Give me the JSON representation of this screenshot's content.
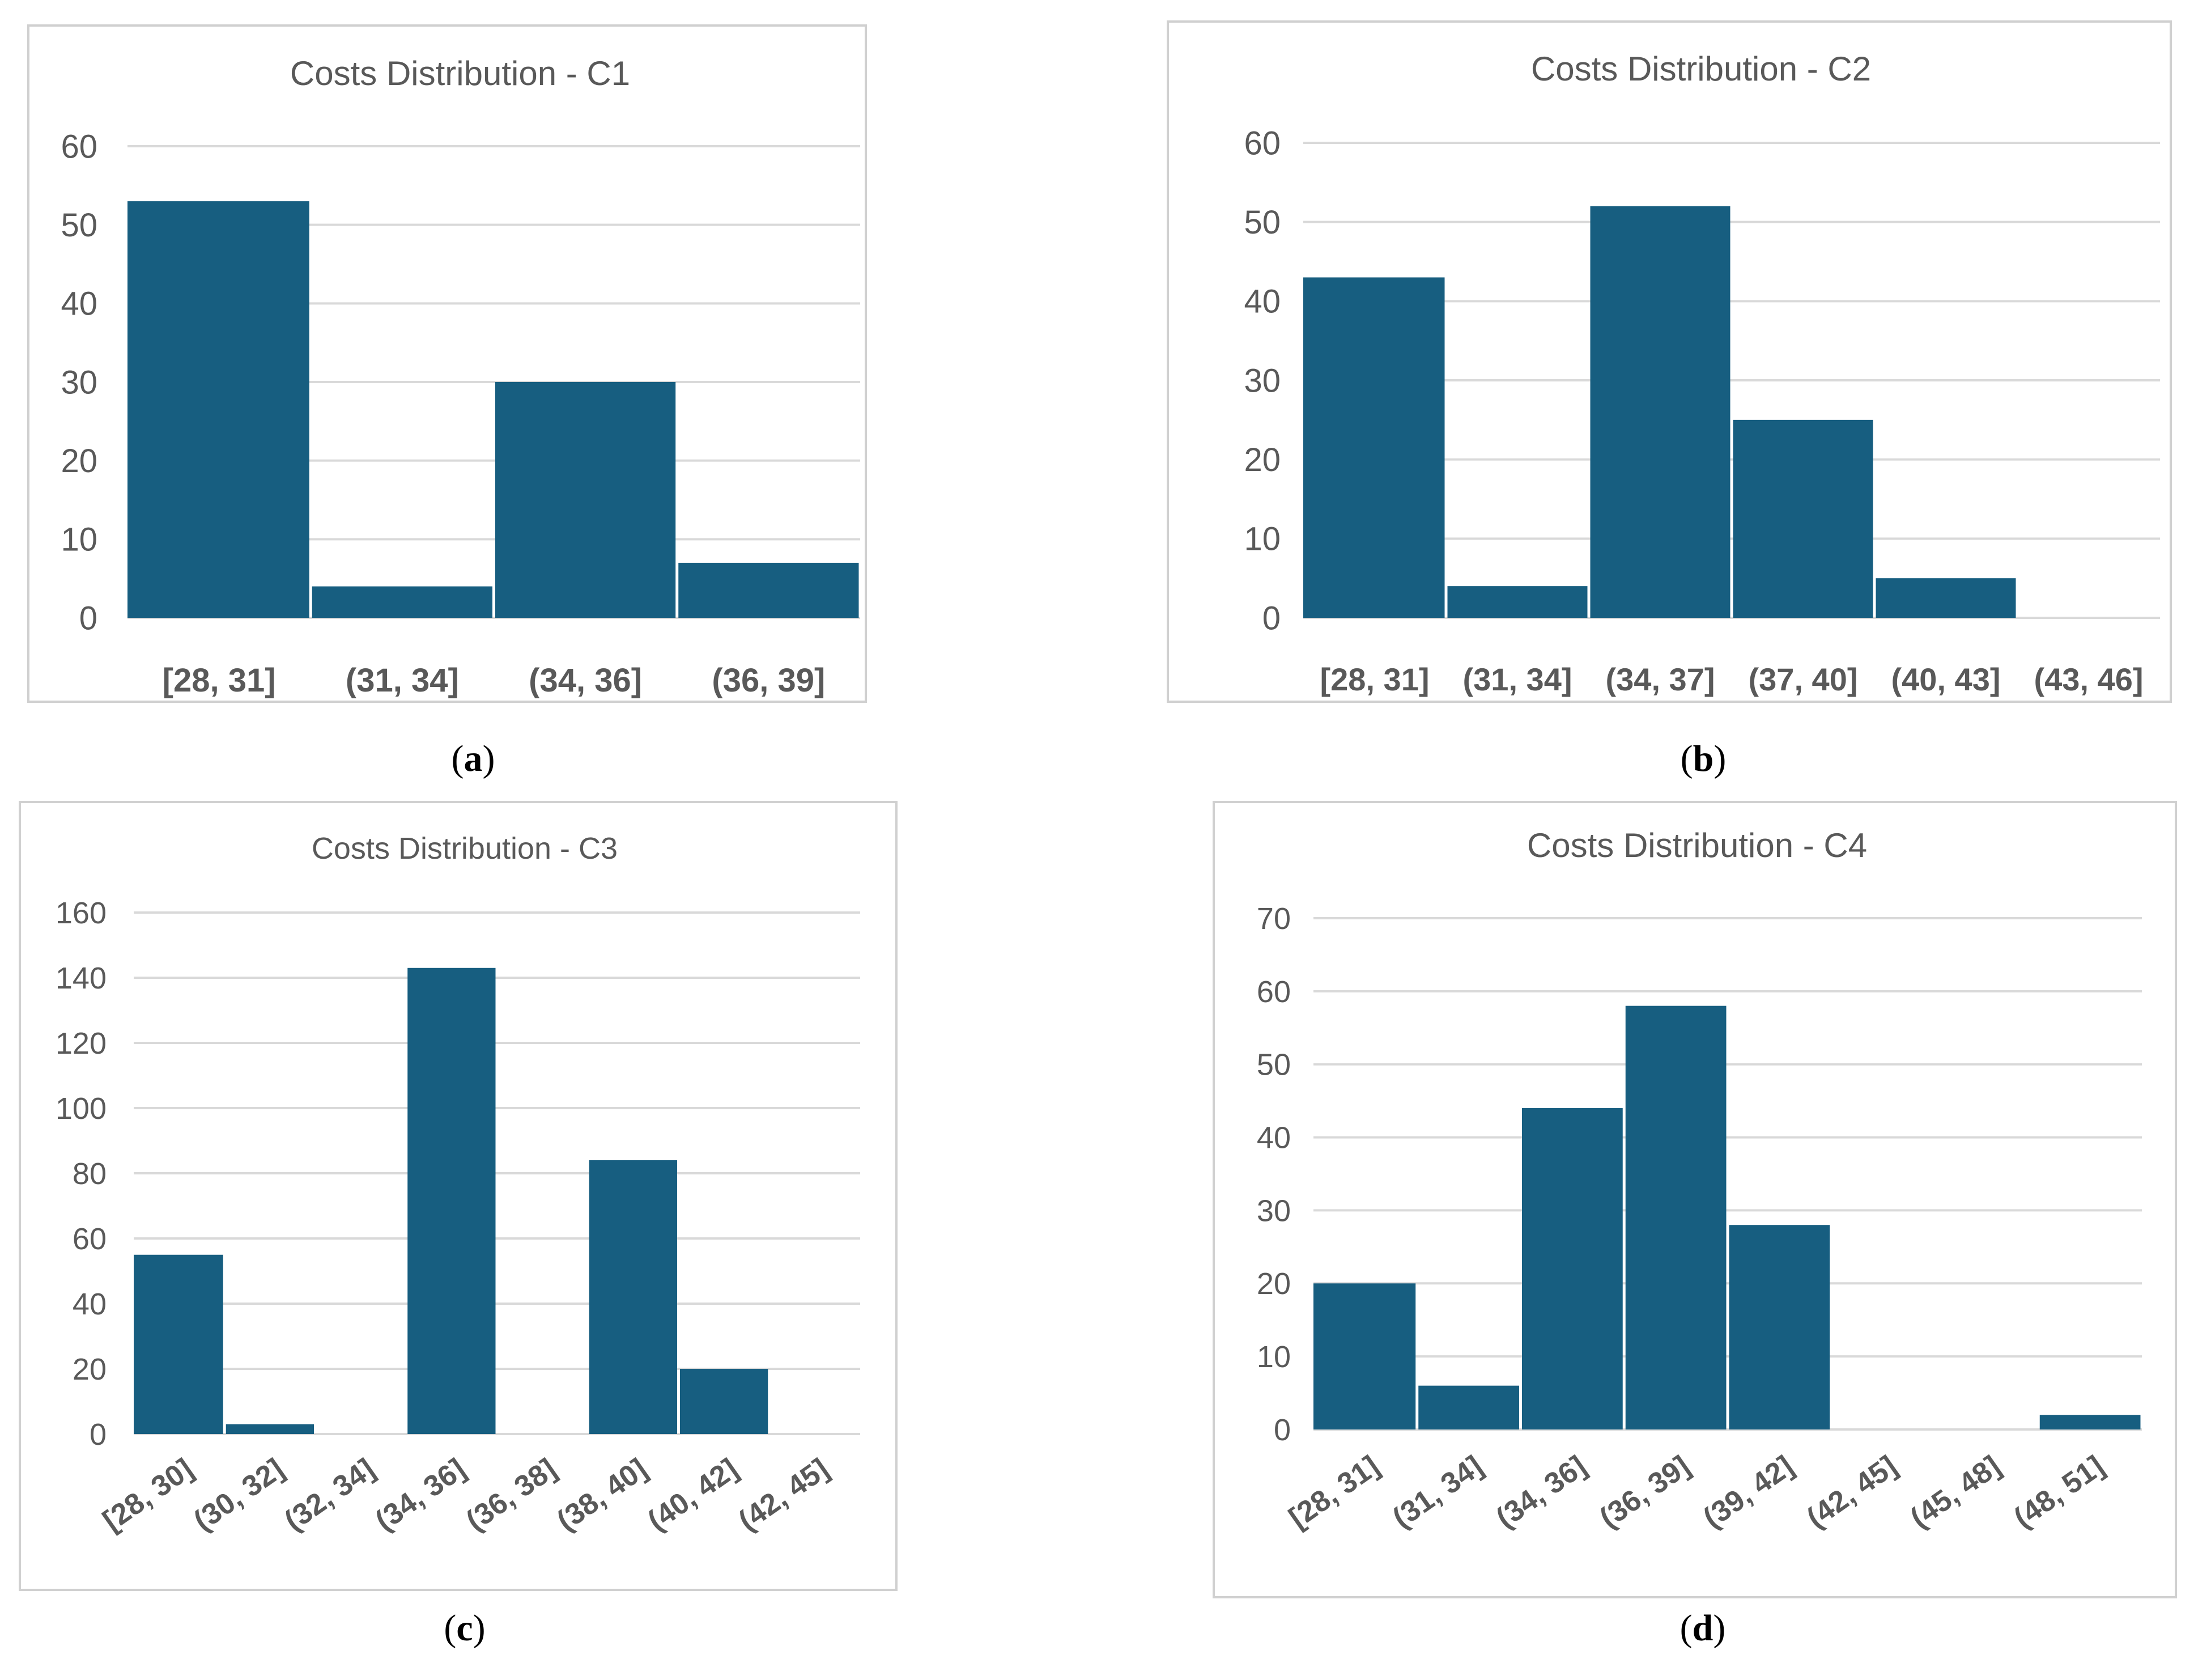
{
  "chart_data": [
    {
      "type": "bar",
      "title": "Costs Distribution - C1",
      "caption": "(a)",
      "categories": [
        "[28, 31]",
        "(31, 34]",
        "(34, 36]",
        "(36, 39]"
      ],
      "values": [
        53,
        4,
        30,
        7
      ],
      "ylim": [
        0,
        60
      ],
      "yticks": [
        0,
        10,
        20,
        30,
        40,
        50,
        60
      ],
      "xlabel": "",
      "ylabel": "",
      "grid": true,
      "color": "#175e80"
    },
    {
      "type": "bar",
      "title": "Costs Distribution - C2",
      "caption": "(b)",
      "categories": [
        "[28, 31]",
        "(31, 34]",
        "(34, 37]",
        "(37, 40]",
        "(40, 43]",
        "(43, 46]"
      ],
      "values": [
        43,
        4,
        52,
        25,
        5,
        0
      ],
      "ylim": [
        0,
        60
      ],
      "yticks": [
        0,
        10,
        20,
        30,
        40,
        50,
        60
      ],
      "xlabel": "",
      "ylabel": "",
      "grid": true,
      "color": "#175e80"
    },
    {
      "type": "bar",
      "title": "Costs Distribution - C3",
      "caption": "(c)",
      "categories": [
        "[28, 30]",
        "(30, 32]",
        "(32, 34]",
        "(34, 36]",
        "(36, 38]",
        "(38, 40]",
        "(40, 42]",
        "(42, 45]"
      ],
      "values": [
        55,
        3,
        0,
        143,
        0,
        84,
        20,
        0
      ],
      "ylim": [
        0,
        160
      ],
      "yticks": [
        0,
        20,
        40,
        60,
        80,
        100,
        120,
        140,
        160
      ],
      "xlabel": "",
      "ylabel": "",
      "grid": true,
      "color": "#175e80"
    },
    {
      "type": "bar",
      "title": "Costs Distribution - C4",
      "caption": "(d)",
      "categories": [
        "[28, 31]",
        "(31, 34]",
        "(34, 36]",
        "(36, 39]",
        "(39, 42]",
        "(42, 45]",
        "(45, 48]",
        "(48, 51]"
      ],
      "values": [
        20,
        6,
        44,
        58,
        28,
        0,
        0,
        2
      ],
      "ylim": [
        0,
        70
      ],
      "yticks": [
        0,
        10,
        20,
        30,
        40,
        50,
        60,
        70
      ],
      "xlabel": "",
      "ylabel": "",
      "grid": true,
      "color": "#175e80"
    }
  ]
}
